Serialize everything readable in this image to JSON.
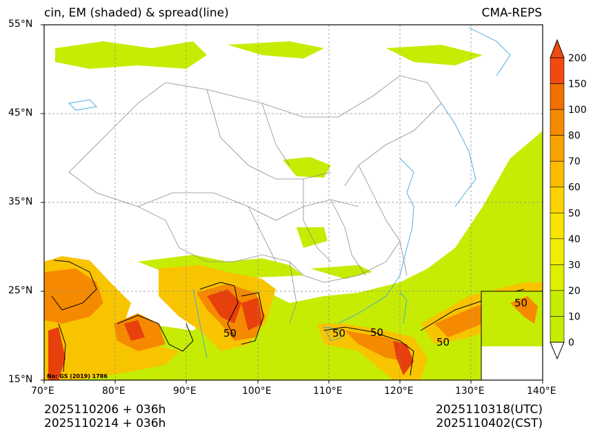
{
  "header": {
    "left_title": "cin, EM (shaded) & spread(line)",
    "right_title": "CMA-REPS"
  },
  "axes": {
    "lat_labels": [
      "55°N",
      "45°N",
      "35°N",
      "25°N",
      "15°N"
    ],
    "lon_labels": [
      "70°E",
      "80°E",
      "90°E",
      "100°E",
      "110°E",
      "120°E",
      "130°E",
      "140°E"
    ]
  },
  "colorbar": {
    "labels": [
      "200",
      "150",
      "100",
      "80",
      "70",
      "60",
      "50",
      "40",
      "30",
      "20",
      "10",
      "0"
    ],
    "colors": [
      "#f04a10",
      "#f07000",
      "#f58a00",
      "#f8a400",
      "#fbbc00",
      "#fdd200",
      "#f8e400",
      "#f0ee00",
      "#e0ee00",
      "#c8ec00",
      "#ffffff"
    ]
  },
  "map": {
    "contour_labels": [
      "50",
      "50",
      "50",
      "50",
      "50"
    ],
    "shade_colors": {
      "light": "#c6ec04",
      "mid": "#f8c400",
      "high": "#f58a00",
      "peak": "#e8400c"
    },
    "coast_color": "#3aa8e0",
    "border_color": "#8a8a8a",
    "watermark": "No: GS (2019) 1786"
  },
  "footer": {
    "init_utc": "2025110206  +  036h",
    "init_cst": "2025110214  +  036h",
    "valid_utc": "2025110318(UTC)",
    "valid_cst": "2025110402(CST)"
  }
}
